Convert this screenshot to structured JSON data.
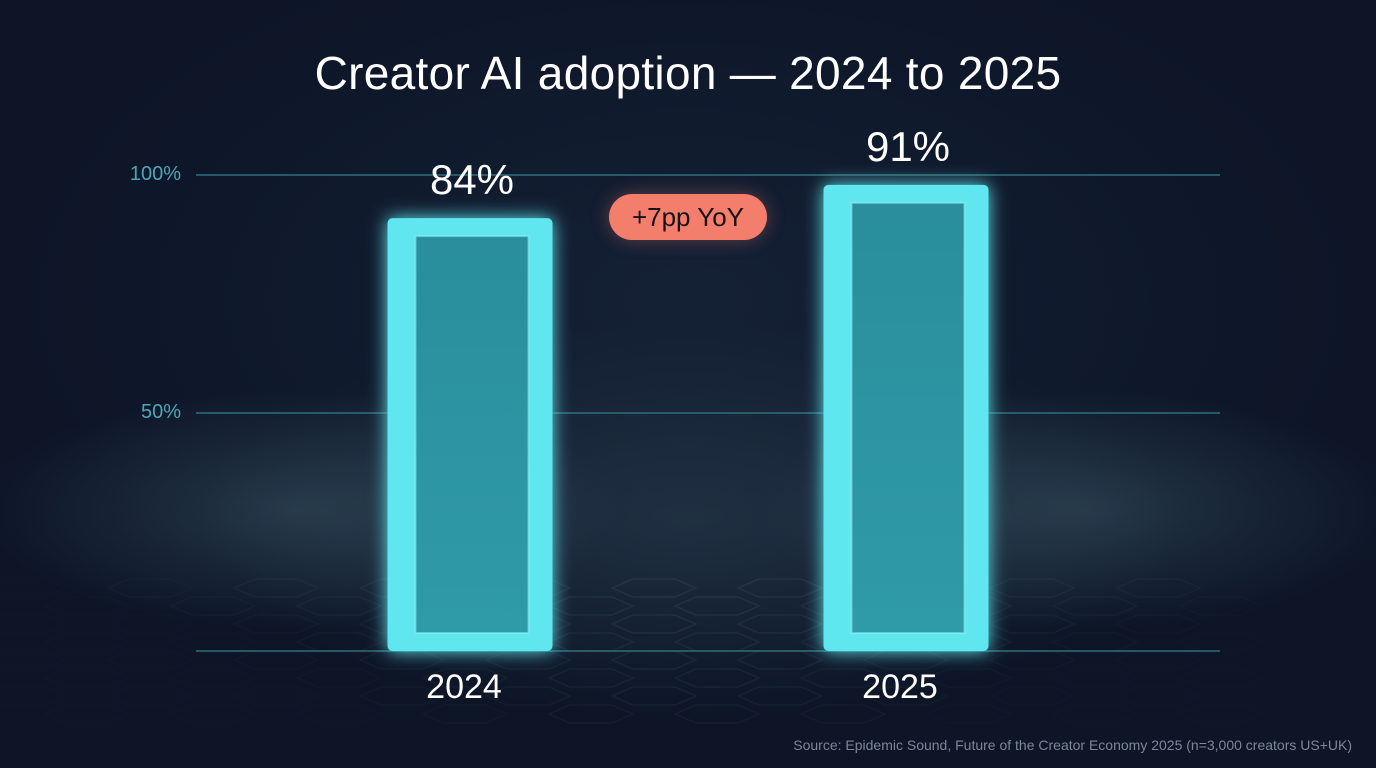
{
  "chart_data": {
    "type": "bar",
    "title": "Creator AI adoption — 2024 to 2025",
    "categories": [
      "2024",
      "2025"
    ],
    "values": [
      84,
      91
    ],
    "value_labels": [
      "84%",
      "91%"
    ],
    "ylim": [
      0,
      100
    ],
    "y_ticks": [
      {
        "value": 50,
        "label": "50%"
      },
      {
        "value": 100,
        "label": "100%"
      }
    ],
    "xlabel": "",
    "ylabel": "",
    "annotation": "+7pp YoY",
    "source": "Source: Epidemic Sound, Future of the Creator Economy 2025 (n=3,000 creators US+UK)",
    "grid": true,
    "colors": {
      "bar": "#5ee6ee",
      "bar_glow": "#3fd6e2",
      "gridline": "#2f6f7c",
      "tick_label": "#4fa6b6",
      "badge": "#f47e6c",
      "background": "#0d1527"
    }
  }
}
